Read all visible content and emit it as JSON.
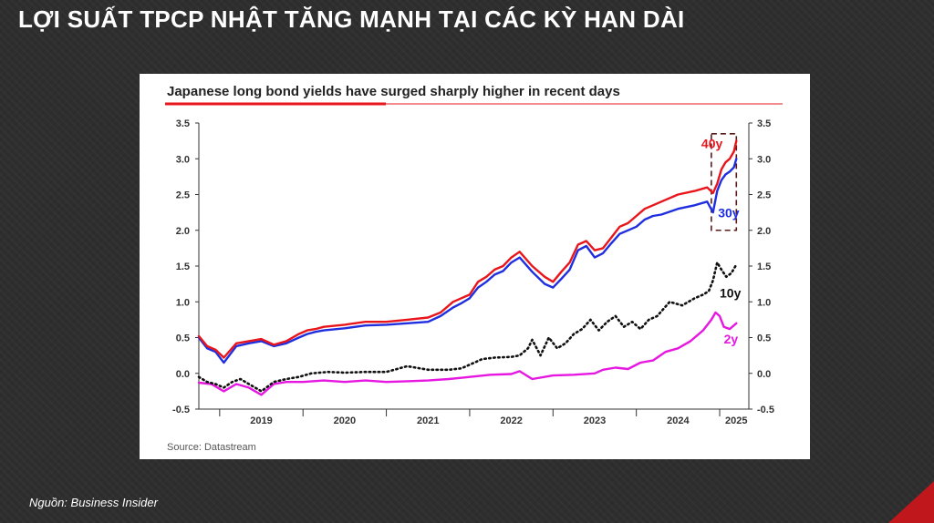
{
  "slide": {
    "title": "LỢI SUẤT TPCP NHẬT TĂNG MẠNH TẠI CÁC KỲ HẠN DÀI",
    "source_note": "Nguồn: Business Insider",
    "accent_color": "#c0171c"
  },
  "chart_data": {
    "type": "line",
    "title": "Japanese long bond yields have surged sharply higher in recent days",
    "source": "Source: Datastream",
    "x_ticks": [
      "2019",
      "2020",
      "2021",
      "2022",
      "2023",
      "2024",
      "2025"
    ],
    "xlim": [
      2018.75,
      2025.35
    ],
    "y_ticks": [
      "3.5",
      "3.0",
      "2.5",
      "2.0",
      "1.5",
      "1.0",
      "0.5",
      "0.0",
      "-0.5"
    ],
    "ylim": [
      -0.5,
      3.5
    ],
    "grid": false,
    "secondary_axis": true,
    "highlight_box": {
      "x_range": [
        2024.9,
        2025.2
      ],
      "y_range": [
        2.0,
        3.35
      ]
    },
    "series": [
      {
        "name": "40y",
        "color": "#e8151b",
        "style": "solid",
        "x": [
          2018.75,
          2018.85,
          2018.95,
          2019.05,
          2019.2,
          2019.35,
          2019.5,
          2019.65,
          2019.8,
          2019.95,
          2020.05,
          2020.15,
          2020.25,
          2020.5,
          2020.75,
          2021.0,
          2021.25,
          2021.5,
          2021.65,
          2021.8,
          2021.9,
          2022.0,
          2022.1,
          2022.2,
          2022.3,
          2022.4,
          2022.5,
          2022.6,
          2022.75,
          2022.9,
          2023.0,
          2023.1,
          2023.2,
          2023.3,
          2023.4,
          2023.5,
          2023.6,
          2023.7,
          2023.8,
          2023.9,
          2024.0,
          2024.1,
          2024.2,
          2024.3,
          2024.5,
          2024.7,
          2024.85,
          2024.92,
          2024.97,
          2025.02,
          2025.07,
          2025.12,
          2025.17,
          2025.2
        ],
        "y": [
          0.52,
          0.38,
          0.33,
          0.22,
          0.42,
          0.45,
          0.48,
          0.4,
          0.45,
          0.55,
          0.6,
          0.62,
          0.65,
          0.68,
          0.72,
          0.72,
          0.75,
          0.78,
          0.85,
          1.0,
          1.05,
          1.1,
          1.28,
          1.35,
          1.45,
          1.5,
          1.62,
          1.7,
          1.5,
          1.35,
          1.28,
          1.42,
          1.55,
          1.8,
          1.85,
          1.72,
          1.75,
          1.9,
          2.05,
          2.1,
          2.2,
          2.3,
          2.35,
          2.4,
          2.5,
          2.55,
          2.6,
          2.52,
          2.65,
          2.85,
          2.95,
          3.0,
          3.1,
          3.25
        ]
      },
      {
        "name": "30y",
        "color": "#1f2fe0",
        "style": "solid",
        "x": [
          2018.75,
          2018.85,
          2018.95,
          2019.05,
          2019.2,
          2019.35,
          2019.5,
          2019.65,
          2019.8,
          2019.95,
          2020.05,
          2020.15,
          2020.25,
          2020.5,
          2020.75,
          2021.0,
          2021.25,
          2021.5,
          2021.65,
          2021.8,
          2021.9,
          2022.0,
          2022.1,
          2022.2,
          2022.3,
          2022.4,
          2022.5,
          2022.6,
          2022.75,
          2022.9,
          2023.0,
          2023.1,
          2023.2,
          2023.3,
          2023.4,
          2023.5,
          2023.6,
          2023.7,
          2023.8,
          2023.9,
          2024.0,
          2024.1,
          2024.2,
          2024.3,
          2024.5,
          2024.7,
          2024.85,
          2024.92,
          2024.97,
          2025.02,
          2025.07,
          2025.12,
          2025.17,
          2025.2
        ],
        "y": [
          0.5,
          0.35,
          0.3,
          0.15,
          0.38,
          0.42,
          0.45,
          0.38,
          0.42,
          0.5,
          0.55,
          0.58,
          0.6,
          0.63,
          0.67,
          0.68,
          0.7,
          0.72,
          0.8,
          0.92,
          0.98,
          1.05,
          1.2,
          1.28,
          1.38,
          1.43,
          1.55,
          1.62,
          1.42,
          1.25,
          1.2,
          1.32,
          1.45,
          1.72,
          1.78,
          1.62,
          1.68,
          1.82,
          1.95,
          2.0,
          2.05,
          2.15,
          2.2,
          2.22,
          2.3,
          2.35,
          2.4,
          2.25,
          2.55,
          2.7,
          2.78,
          2.82,
          2.88,
          3.0
        ]
      },
      {
        "name": "10y",
        "color": "#111111",
        "style": "dotted",
        "x": [
          2018.75,
          2018.85,
          2018.95,
          2019.05,
          2019.15,
          2019.25,
          2019.35,
          2019.5,
          2019.65,
          2019.8,
          2019.95,
          2020.1,
          2020.3,
          2020.5,
          2020.75,
          2021.0,
          2021.25,
          2021.5,
          2021.75,
          2021.9,
          2022.0,
          2022.15,
          2022.3,
          2022.5,
          2022.6,
          2022.7,
          2022.75,
          2022.85,
          2022.95,
          2023.05,
          2023.15,
          2023.25,
          2023.35,
          2023.45,
          2023.55,
          2023.65,
          2023.75,
          2023.85,
          2023.95,
          2024.05,
          2024.15,
          2024.25,
          2024.4,
          2024.55,
          2024.7,
          2024.8,
          2024.87,
          2024.92,
          2024.97,
          2025.02,
          2025.08,
          2025.14,
          2025.2
        ],
        "y": [
          -0.05,
          -0.12,
          -0.15,
          -0.2,
          -0.12,
          -0.08,
          -0.15,
          -0.25,
          -0.12,
          -0.08,
          -0.05,
          0.0,
          0.02,
          0.01,
          0.02,
          0.02,
          0.1,
          0.05,
          0.05,
          0.07,
          0.12,
          0.2,
          0.22,
          0.23,
          0.25,
          0.35,
          0.47,
          0.25,
          0.5,
          0.35,
          0.42,
          0.55,
          0.62,
          0.75,
          0.6,
          0.72,
          0.8,
          0.65,
          0.72,
          0.62,
          0.75,
          0.8,
          1.0,
          0.95,
          1.05,
          1.1,
          1.15,
          1.3,
          1.55,
          1.45,
          1.35,
          1.4,
          1.52
        ]
      },
      {
        "name": "2y",
        "color": "#e617e0",
        "style": "solid",
        "x": [
          2018.75,
          2018.9,
          2019.05,
          2019.2,
          2019.35,
          2019.5,
          2019.65,
          2019.8,
          2020.0,
          2020.25,
          2020.5,
          2020.75,
          2021.0,
          2021.25,
          2021.5,
          2021.75,
          2022.0,
          2022.25,
          2022.5,
          2022.6,
          2022.75,
          2023.0,
          2023.25,
          2023.5,
          2023.6,
          2023.75,
          2023.9,
          2024.05,
          2024.2,
          2024.35,
          2024.5,
          2024.65,
          2024.8,
          2024.9,
          2024.95,
          2025.0,
          2025.05,
          2025.12,
          2025.2
        ],
        "y": [
          -0.13,
          -0.15,
          -0.25,
          -0.15,
          -0.2,
          -0.3,
          -0.15,
          -0.12,
          -0.12,
          -0.1,
          -0.12,
          -0.1,
          -0.12,
          -0.11,
          -0.1,
          -0.08,
          -0.05,
          -0.02,
          -0.01,
          0.03,
          -0.08,
          -0.03,
          -0.02,
          0.0,
          0.05,
          0.08,
          0.06,
          0.15,
          0.18,
          0.3,
          0.35,
          0.45,
          0.6,
          0.75,
          0.85,
          0.8,
          0.65,
          0.62,
          0.7
        ]
      }
    ],
    "labels": [
      {
        "text": "40y",
        "color": "#e8151b",
        "x": 2024.78,
        "y": 3.15
      },
      {
        "text": "30y",
        "color": "#1f2fe0",
        "x": 2024.98,
        "y": 2.18
      },
      {
        "text": "10y",
        "color": "#111111",
        "x": 2025.0,
        "y": 1.06
      },
      {
        "text": "2y",
        "color": "#e617e0",
        "x": 2025.05,
        "y": 0.42
      }
    ]
  }
}
